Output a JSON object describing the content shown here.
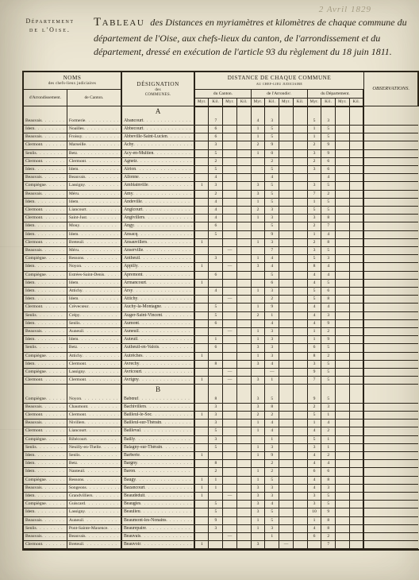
{
  "pencil_note": "2 Avril 1829",
  "department": {
    "line1": "Département",
    "line2": "de l'Oise."
  },
  "title": {
    "lead": "Tableau",
    "rest": " des Distances en myriamètres et kilomètres de chaque commune du département de l'Oise, aux chefs-lieux du canton, de l'arrondissement et du département, dressé en exécution de l'article 93 du règlement du 18 juin 1811."
  },
  "headers": {
    "noms": "NOMS",
    "noms_sub": "des chefs-lieux judiciaires",
    "arr": "d'Arrondissement.",
    "cant": "de Canton.",
    "designation": "DÉSIGNATION",
    "designation_sub": "des",
    "designation_sub2": "COMMUNES.",
    "dist": "DISTANCE DE CHAQUE COMMUNE",
    "dist_sub": "au chef-lieu judiciaire",
    "du_canton": "du Canton.",
    "de_arr": "de l'Arrondisᵗ.",
    "du_dep": "du Département.",
    "obs": "OBSERVATIONS.",
    "myr": "Myr.",
    "kil": "Kil."
  },
  "sections": [
    {
      "letter": "A",
      "rows": [
        {
          "arr": "Beauvais",
          "cant": "Formerie",
          "commune": "Abancourt",
          "c": [
            "",
            "7"
          ],
          "a": [
            "4",
            "3"
          ],
          "d": [
            "5",
            "3"
          ]
        },
        {
          "arr": "Idem",
          "cant": "Noailles",
          "commune": "Abbecourt",
          "c": [
            "",
            "6"
          ],
          "a": [
            "1",
            "5"
          ],
          "d": [
            "1",
            "5"
          ]
        },
        {
          "arr": "Beauvais",
          "cant": "Froissy",
          "commune": "Abbeville-Saint-Lucien",
          "c": [
            "",
            "6"
          ],
          "a": [
            "1",
            "5"
          ],
          "d": [
            "1",
            "5"
          ]
        },
        {
          "arr": "Clermont",
          "cant": "Marseille",
          "commune": "Achy",
          "c": [
            "",
            "3"
          ],
          "a": [
            "2",
            "9"
          ],
          "d": [
            "2",
            "9"
          ]
        },
        {
          "arr": "Senlis",
          "cant": "Betz",
          "commune": "Acy-en-Multien",
          "c": [
            "",
            "5"
          ],
          "a": [
            "1",
            "0"
          ],
          "d": [
            "3",
            "9"
          ]
        },
        {
          "arr": "Clermont",
          "cant": "Clermont",
          "commune": "Agnetz",
          "c": [
            "",
            "2"
          ],
          "a": [
            "",
            "2"
          ],
          "d": [
            "2",
            "6"
          ]
        },
        {
          "arr": "Idem",
          "cant": "Idem",
          "commune": "Airion",
          "c": [
            "",
            "5"
          ],
          "a": [
            "",
            "5"
          ],
          "d": [
            "3",
            "6"
          ]
        },
        {
          "arr": "Beauvais",
          "cant": "Beauvais",
          "commune": "Allonne",
          "c": [
            "",
            "4"
          ],
          "a": [
            "",
            "4"
          ],
          "d": [
            "",
            "4"
          ]
        },
        {
          "arr": "Compiègne",
          "cant": "Lassigny",
          "commune": "Amblainville",
          "c": [
            "1",
            "3"
          ],
          "a": [
            "3",
            "5"
          ],
          "d": [
            "3",
            "5"
          ]
        },
        {
          "arr": "Beauvais",
          "cant": "Méru",
          "commune": "Amy",
          "c": [
            "",
            "2"
          ],
          "a": [
            "3",
            "5"
          ],
          "d": [
            "7",
            "2"
          ]
        },
        {
          "arr": "Idem",
          "cant": "Idem",
          "commune": "Andeville",
          "c": [
            "",
            "4"
          ],
          "a": [
            "1",
            "5"
          ],
          "d": [
            "1",
            "5"
          ]
        },
        {
          "arr": "Clermont",
          "cant": "Liancourt",
          "commune": "Angicourt",
          "c": [
            "",
            "4"
          ],
          "a": [
            "2",
            "3"
          ],
          "d": [
            "5",
            "5"
          ]
        },
        {
          "arr": "Clermont",
          "cant": "Saint-Just",
          "commune": "Angivillers",
          "c": [
            "",
            "4"
          ],
          "a": [
            "1",
            "3"
          ],
          "d": [
            "3",
            "8"
          ]
        },
        {
          "arr": "Idem",
          "cant": "Mouy",
          "commune": "Angy",
          "c": [
            "",
            "6"
          ],
          "a": [
            "",
            "5"
          ],
          "d": [
            "2",
            "7"
          ]
        },
        {
          "arr": "Idem",
          "cant": "Idem",
          "commune": "Ansacq",
          "c": [
            "",
            "5"
          ],
          "a": [
            "",
            "9"
          ],
          "d": [
            "1",
            "4"
          ]
        },
        {
          "arr": "Clermont",
          "cant": "Breteuil",
          "commune": "Ansauvillers",
          "c": [
            "1",
            ""
          ],
          "a": [
            "1",
            "3"
          ],
          "d": [
            "2",
            "8"
          ]
        },
        {
          "arr": "Beauvais",
          "cant": "Méru",
          "commune": "Anserville",
          "c": [
            "",
            "",
            "—"
          ],
          "a": [
            "",
            "7"
          ],
          "d": [
            "3",
            "5"
          ]
        },
        {
          "arr": "Compiègne",
          "cant": "Ressons",
          "commune": "Antheuil",
          "c": [
            "",
            "3"
          ],
          "a": [
            "1",
            "4"
          ],
          "d": [
            "5",
            "3"
          ]
        },
        {
          "arr": "Idem",
          "cant": "Noyon",
          "commune": "Appilly",
          "c": [
            "1",
            "",
            "—"
          ],
          "a": [
            "3",
            "4"
          ],
          "d": [
            "8",
            "4"
          ]
        },
        {
          "arr": "Compiègne",
          "cant": "Estrées-Saint-Denis",
          "commune": "Apremont",
          "c": [
            "",
            "6"
          ],
          "a": [
            "",
            "5"
          ],
          "d": [
            "4",
            "4"
          ]
        },
        {
          "arr": "Idem",
          "cant": "Idem",
          "commune": "Armancourt",
          "c": [
            "1",
            ""
          ],
          "a": [
            "",
            "6"
          ],
          "d": [
            "4",
            "5"
          ]
        },
        {
          "arr": "Idem",
          "cant": "Attichy",
          "commune": "Arsy",
          "c": [
            "",
            "4"
          ],
          "a": [
            "1",
            "3"
          ],
          "d": [
            "5",
            "6"
          ]
        },
        {
          "arr": "Idem",
          "cant": "Idem",
          "commune": "Attichy",
          "c": [
            "",
            "",
            "—"
          ],
          "a": [
            "",
            "2"
          ],
          "d": [
            "5",
            "8"
          ]
        },
        {
          "arr": "Clermont",
          "cant": "Crèvecœur",
          "commune": "Auchy-la-Montagne",
          "c": [
            "",
            "5"
          ],
          "a": [
            "1",
            "9"
          ],
          "d": [
            "4",
            "4"
          ]
        },
        {
          "arr": "Senlis",
          "cant": "Crépy",
          "commune": "Auger-Saint-Vincent",
          "c": [
            "",
            "5"
          ],
          "a": [
            "2",
            "1"
          ],
          "d": [
            "4",
            "3"
          ]
        },
        {
          "arr": "Idem",
          "cant": "Senlis",
          "commune": "Aumont",
          "c": [
            "",
            "6"
          ],
          "a": [
            "",
            "4"
          ],
          "d": [
            "4",
            "9"
          ]
        },
        {
          "arr": "Beauvais",
          "cant": "Auneuil",
          "commune": "Auneuil",
          "c": [
            "",
            "",
            "—"
          ],
          "a": [
            "1",
            "3"
          ],
          "d": [
            "1",
            "2"
          ]
        },
        {
          "arr": "Idem",
          "cant": "Idem",
          "commune": "Auteuil",
          "c": [
            "",
            "1"
          ],
          "a": [
            "1",
            "3"
          ],
          "d": [
            "1",
            "9"
          ]
        },
        {
          "arr": "Senlis",
          "cant": "Betz",
          "commune": "Autheuil-en-Valois",
          "c": [
            "",
            "6"
          ],
          "a": [
            "3",
            "3"
          ],
          "d": [
            "6",
            "5"
          ]
        },
        {
          "arr": "Compiègne",
          "cant": "Attichy",
          "commune": "Autrêches",
          "c": [
            "1",
            ""
          ],
          "a": [
            "1",
            "3"
          ],
          "d": [
            "8",
            "2"
          ]
        },
        {
          "arr": "Idem",
          "cant": "Clermont",
          "commune": "Avrechy",
          "c": [
            "",
            "8"
          ],
          "a": [
            "3",
            "4"
          ],
          "d": [
            "3",
            "5"
          ]
        },
        {
          "arr": "Compiègne",
          "cant": "Lassigny",
          "commune": "Avricourt",
          "c": [
            "",
            "",
            "—"
          ],
          "a": [
            "",
            "—"
          ],
          "d": [
            "9",
            "5"
          ]
        },
        {
          "arr": "Clermont",
          "cant": "Clermont",
          "commune": "Avrigny",
          "c": [
            "1",
            "",
            "—"
          ],
          "a": [
            "3",
            "1"
          ],
          "d": [
            "7",
            "5"
          ]
        }
      ]
    },
    {
      "letter": "B",
      "rows": [
        {
          "arr": "Compiègne",
          "cant": "Noyon",
          "commune": "Babœuf",
          "c": [
            "",
            "8"
          ],
          "a": [
            "3",
            "5"
          ],
          "d": [
            "9",
            "5"
          ]
        },
        {
          "arr": "Beauvais",
          "cant": "Chaumont",
          "commune": "Bachivillers",
          "c": [
            "",
            "3"
          ],
          "a": [
            "3",
            "8"
          ],
          "d": [
            "2",
            "3"
          ]
        },
        {
          "arr": "Clermont",
          "cant": "Clermont",
          "commune": "Bailleul-le-Soc",
          "c": [
            "1",
            "3"
          ],
          "a": [
            "2",
            "2"
          ],
          "d": [
            "5",
            "1"
          ]
        },
        {
          "arr": "Beauvais",
          "cant": "Nivillers",
          "commune": "Bailleul-sur-Thérain",
          "c": [
            "",
            "3"
          ],
          "a": [
            "1",
            "4"
          ],
          "d": [
            "1",
            "4"
          ]
        },
        {
          "arr": "Clermont",
          "cant": "Liancourt",
          "commune": "Bailleval",
          "c": [
            "",
            "5"
          ],
          "a": [
            "1",
            "4"
          ],
          "d": [
            "4",
            "2"
          ]
        },
        {
          "arr": "Compiègne",
          "cant": "Ribécourt",
          "commune": "Bailly",
          "c": [
            "",
            "3"
          ],
          "a": [
            "",
            "1"
          ],
          "d": [
            "5",
            "1"
          ]
        },
        {
          "arr": "Senlis",
          "cant": "Neuilly-en-Thelle",
          "commune": "Balagny-sur-Thérain",
          "c": [
            "",
            "5"
          ],
          "a": [
            "1",
            "3"
          ],
          "d": [
            "3",
            "1"
          ]
        },
        {
          "arr": "Idem",
          "cant": "Senlis",
          "commune": "Barberie",
          "c": [
            "1",
            ""
          ],
          "a": [
            "1",
            "9"
          ],
          "d": [
            "4",
            "2"
          ]
        },
        {
          "arr": "Idem",
          "cant": "Betz",
          "commune": "Bargny",
          "c": [
            "",
            "8"
          ],
          "a": [
            "",
            "2"
          ],
          "d": [
            "4",
            "4"
          ]
        },
        {
          "arr": "Idem",
          "cant": "Nanteuil",
          "commune": "Baron",
          "c": [
            "",
            "2"
          ],
          "a": [
            "1",
            "2"
          ],
          "d": [
            "6",
            "6"
          ]
        },
        {
          "arr": "Compiègne",
          "cant": "Ressons",
          "commune": "Baugy",
          "c": [
            "1",
            "1"
          ],
          "a": [
            "1",
            "5"
          ],
          "d": [
            "4",
            "8"
          ]
        },
        {
          "arr": "Beauvais",
          "cant": "Songeons",
          "commune": "Bazancourt",
          "c": [
            "1",
            "1"
          ],
          "a": [
            "3",
            "3"
          ],
          "d": [
            "4",
            "3"
          ]
        },
        {
          "arr": "Idem",
          "cant": "Grandvilliers",
          "commune": "Beaudéduit",
          "c": [
            "1",
            "",
            "—"
          ],
          "a": [
            "3",
            "3"
          ],
          "d": [
            "3",
            "5"
          ]
        },
        {
          "arr": "Compiègne",
          "cant": "Guiscard",
          "commune": "Beaugies",
          "c": [
            "",
            "5"
          ],
          "a": [
            "3",
            "4"
          ],
          "d": [
            "3",
            "5"
          ]
        },
        {
          "arr": "Idem",
          "cant": "Lassigny",
          "commune": "Beaulieu",
          "c": [
            "",
            "5"
          ],
          "a": [
            "3",
            "5"
          ],
          "d": [
            "10",
            "9"
          ]
        },
        {
          "arr": "Beauvais",
          "cant": "Auneuil",
          "commune": "Beaumont-les-Nonains",
          "c": [
            "",
            "9"
          ],
          "a": [
            "1",
            "5"
          ],
          "d": [
            "1",
            "8"
          ]
        },
        {
          "arr": "Senlis",
          "cant": "Pont-Sainte-Maxence",
          "commune": "Beaurepaire",
          "c": [
            "",
            "3"
          ],
          "a": [
            "1",
            "3"
          ],
          "d": [
            "4",
            "8"
          ]
        },
        {
          "arr": "Beauvais",
          "cant": "Beauvais",
          "commune": "Beauvais",
          "c": [
            "",
            "",
            "—"
          ],
          "a": [
            "",
            "1"
          ],
          "d": [
            "6",
            "2"
          ]
        },
        {
          "arr": "Clermont",
          "cant": "Breteuil",
          "commune": "Beauvoir",
          "c": [
            "1",
            ""
          ],
          "a": [
            "3",
            "",
            "—"
          ],
          "d": [
            "",
            "7"
          ]
        }
      ]
    }
  ]
}
